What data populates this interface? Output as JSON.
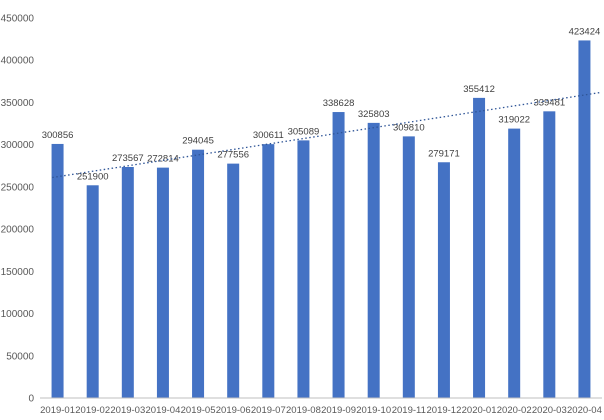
{
  "chart_data": {
    "type": "bar",
    "categories": [
      "2019-01",
      "2019-02",
      "2019-03",
      "2019-04",
      "2019-05",
      "2019-06",
      "2019-07",
      "2019-08",
      "2019-09",
      "2019-10",
      "2019-11",
      "2019-12",
      "2020-01",
      "2020-02",
      "2020-03",
      "2020-04"
    ],
    "values": [
      300856,
      251900,
      273567,
      272814,
      294045,
      277556,
      300611,
      305089,
      338628,
      325803,
      309810,
      279171,
      355412,
      319022,
      339481,
      423424
    ],
    "data_labels": [
      "300856",
      "251900",
      "273567",
      "272814",
      "294045",
      "277556",
      "300611",
      "305089",
      "338628",
      "325803",
      "309810",
      "279171",
      "355412",
      "319022",
      "339481",
      "423424"
    ],
    "yticks": [
      0,
      50000,
      100000,
      150000,
      200000,
      250000,
      300000,
      350000,
      400000,
      450000
    ],
    "ytick_labels": [
      "0",
      "50000",
      "100000",
      "150000",
      "200000",
      "250000",
      "300000",
      "350000",
      "400000",
      "450000"
    ],
    "ylim": [
      0,
      450000
    ],
    "trendline": {
      "type": "linear",
      "style": "dotted"
    },
    "title": "",
    "xlabel": "",
    "ylabel": "",
    "grid": false,
    "legend": "none",
    "colors": {
      "bar": "#4472C4",
      "trend": "#2F5597",
      "axis": "#BFBFBF",
      "text": "#595959"
    }
  }
}
